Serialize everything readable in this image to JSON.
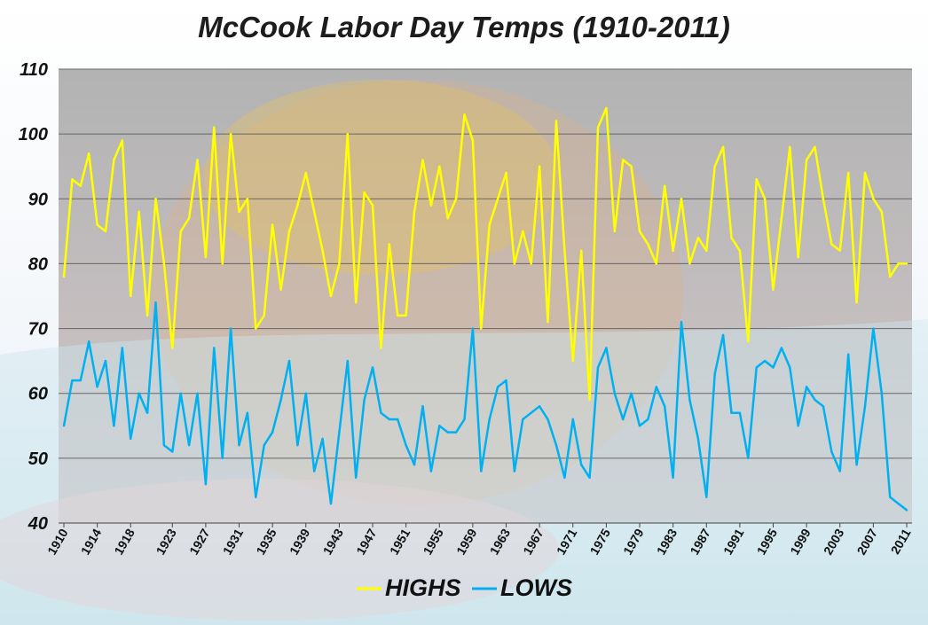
{
  "chart_data": {
    "type": "line",
    "title": "McCook Labor Day Temps (1910-2011)",
    "xlabel": "",
    "ylabel": "",
    "ylim": [
      40,
      110
    ],
    "yticks": [
      40,
      50,
      60,
      70,
      80,
      90,
      100,
      110
    ],
    "grid": true,
    "legend_position": "bottom",
    "x": [
      1910,
      1911,
      1912,
      1913,
      1914,
      1915,
      1916,
      1917,
      1918,
      1919,
      1920,
      1921,
      1922,
      1923,
      1924,
      1925,
      1926,
      1927,
      1928,
      1929,
      1930,
      1931,
      1932,
      1933,
      1934,
      1935,
      1936,
      1937,
      1938,
      1939,
      1940,
      1941,
      1942,
      1943,
      1944,
      1945,
      1946,
      1947,
      1948,
      1949,
      1950,
      1951,
      1952,
      1953,
      1954,
      1955,
      1956,
      1957,
      1958,
      1959,
      1960,
      1961,
      1962,
      1963,
      1964,
      1965,
      1966,
      1967,
      1968,
      1969,
      1970,
      1971,
      1972,
      1973,
      1974,
      1975,
      1976,
      1977,
      1978,
      1979,
      1980,
      1981,
      1982,
      1983,
      1984,
      1985,
      1986,
      1987,
      1988,
      1989,
      1990,
      1991,
      1992,
      1993,
      1994,
      1995,
      1996,
      1997,
      1998,
      1999,
      2000,
      2001,
      2002,
      2003,
      2004,
      2005,
      2006,
      2007,
      2008,
      2009,
      2010,
      2011
    ],
    "x_tick_labels": [
      "1910",
      "1914",
      "1918",
      "1923",
      "1927",
      "1931",
      "1935",
      "1939",
      "1943",
      "1947",
      "1951",
      "1955",
      "1959",
      "1963",
      "1967",
      "1971",
      "1975",
      "1979",
      "1983",
      "1987",
      "1991",
      "1995",
      "1999",
      "2003",
      "2007",
      "2011"
    ],
    "series": [
      {
        "name": "HIGHS",
        "color": "#ffff00",
        "values": [
          78,
          93,
          92,
          97,
          86,
          85,
          96,
          99,
          75,
          88,
          72,
          90,
          80,
          67,
          85,
          87,
          96,
          81,
          101,
          80,
          100,
          88,
          90,
          70,
          72,
          86,
          76,
          85,
          89,
          94,
          88,
          82,
          75,
          80,
          100,
          74,
          91,
          89,
          67,
          83,
          72,
          72,
          88,
          96,
          89,
          95,
          87,
          90,
          103,
          99,
          70,
          86,
          90,
          94,
          80,
          85,
          80,
          95,
          71,
          102,
          82,
          65,
          82,
          59,
          101,
          104,
          85,
          96,
          95,
          85,
          83,
          80,
          92,
          82,
          90,
          80,
          84,
          82,
          95,
          98,
          84,
          82,
          68,
          93,
          90,
          76,
          87,
          98,
          81,
          96,
          98,
          90,
          83,
          82,
          94,
          74,
          94,
          90,
          88,
          78,
          80,
          80
        ]
      },
      {
        "name": "LOWS",
        "color": "#00b0f0",
        "values": [
          55,
          62,
          62,
          68,
          61,
          65,
          55,
          67,
          53,
          60,
          57,
          74,
          52,
          51,
          60,
          52,
          60,
          46,
          67,
          50,
          70,
          52,
          57,
          44,
          52,
          54,
          59,
          65,
          52,
          60,
          48,
          53,
          43,
          54,
          65,
          47,
          59,
          64,
          57,
          56,
          56,
          52,
          49,
          58,
          48,
          55,
          54,
          54,
          56,
          70,
          48,
          56,
          61,
          62,
          48,
          56,
          57,
          58,
          56,
          52,
          47,
          56,
          49,
          47,
          64,
          67,
          60,
          56,
          60,
          55,
          56,
          61,
          58,
          47,
          71,
          59,
          53,
          44,
          63,
          69,
          57,
          57,
          50,
          64,
          65,
          64,
          67,
          64,
          55,
          61,
          59,
          58,
          51,
          48,
          66,
          49,
          58,
          70,
          60,
          44,
          43,
          42
        ]
      }
    ]
  }
}
